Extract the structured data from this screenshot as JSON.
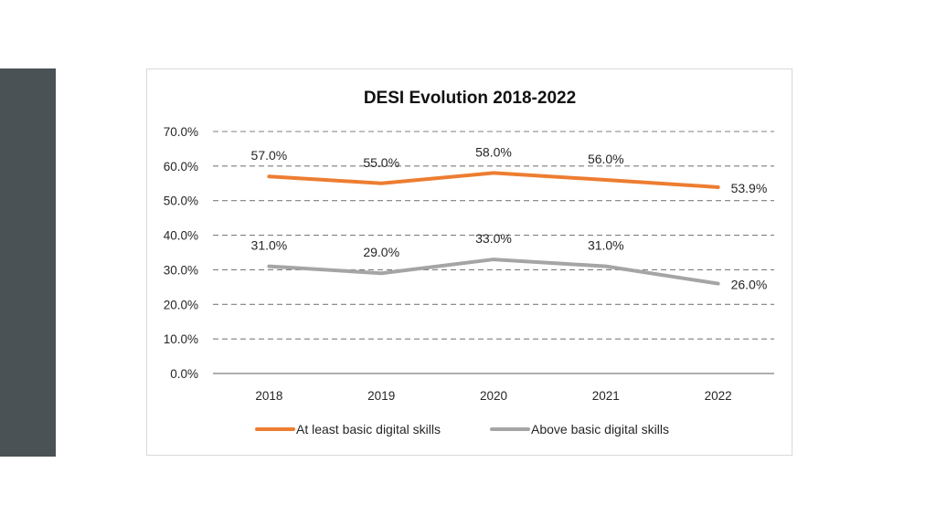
{
  "colors": {
    "sidebar": "#4a5256",
    "series_orange": "#ED7D31",
    "series_gray": "#A5A5A5",
    "grid": "#7f7f7f",
    "text": "#262626"
  },
  "chart_data": {
    "type": "line",
    "title": "DESI Evolution 2018-2022",
    "xlabel": "",
    "ylabel": "",
    "categories": [
      "2018",
      "2019",
      "2020",
      "2021",
      "2022"
    ],
    "ylim": [
      0,
      70
    ],
    "yticks": [
      0,
      10,
      20,
      30,
      40,
      50,
      60,
      70
    ],
    "ytick_labels": [
      "0.0%",
      "10.0%",
      "20.0%",
      "30.0%",
      "40.0%",
      "50.0%",
      "60.0%",
      "70.0%"
    ],
    "grid": "dashed horizontal",
    "legend": "bottom",
    "series": [
      {
        "name": "At least basic digital skills",
        "color": "#ED7D31",
        "values": [
          57.0,
          55.0,
          58.0,
          56.0,
          53.9
        ],
        "labels": [
          "57.0%",
          "55.0%",
          "58.0%",
          "56.0%",
          "53.9%"
        ]
      },
      {
        "name": "Above basic digital skills",
        "color": "#A5A5A5",
        "values": [
          31.0,
          29.0,
          33.0,
          31.0,
          26.0
        ],
        "labels": [
          "31.0%",
          "29.0%",
          "33.0%",
          "31.0%",
          "26.0%"
        ]
      }
    ]
  }
}
